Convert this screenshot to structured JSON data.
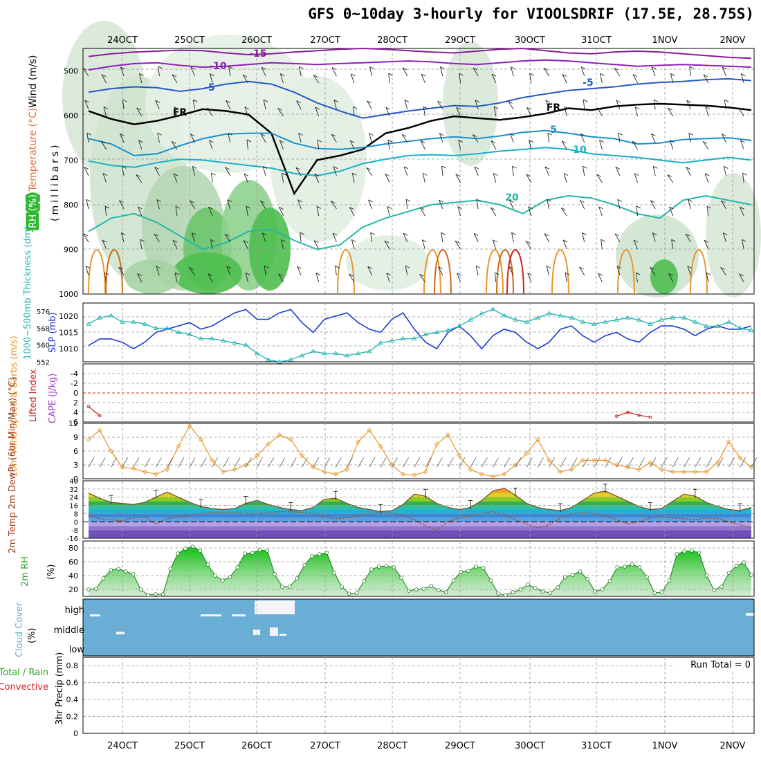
{
  "title": "GFS 0~10day 3-hourly for VIOOLSDRIF (17.5E, 28.75S)",
  "date_ticks": [
    "24OCT",
    "25OCT",
    "26OCT",
    "27OCT",
    "28OCT",
    "29OCT",
    "30OCT",
    "31OCT",
    "1NOV",
    "2NOV"
  ],
  "colors": {
    "rh_fill": "#2eb82e",
    "cloud": "#6aaed6",
    "slp": "#1a3ccf",
    "thick": "#2ab4b4",
    "wind": "#e8962a",
    "li": "#d42020",
    "rh2m": "#22aa22"
  },
  "chart_data": [
    {
      "type": "heatmap",
      "name": "upper-air",
      "ylabel_parts": [
        "RH (%)",
        "Temperature (°C)",
        "Wind (m/s)"
      ],
      "ylabel_unit": "(millibars)",
      "yticks": [
        "500",
        "600",
        "700",
        "800",
        "900",
        "1000"
      ],
      "ylim": [
        1000,
        450
      ],
      "isotherms": [
        {
          "label": "-15",
          "values": [
            468,
            462,
            458,
            456,
            454,
            455,
            460,
            464,
            462,
            458,
            455,
            452,
            450,
            452,
            455,
            458,
            460,
            456,
            452,
            450,
            455,
            460,
            462,
            458,
            456,
            458,
            462,
            466,
            470,
            472
          ]
        },
        {
          "label": "-10",
          "values": [
            498,
            490,
            484,
            482,
            488,
            492,
            490,
            486,
            482,
            484,
            486,
            484,
            482,
            480,
            478,
            480,
            484,
            486,
            482,
            478,
            476,
            478,
            482,
            486,
            490,
            488,
            486,
            488,
            490,
            492
          ]
        },
        {
          "label": "-5",
          "values": [
            548,
            540,
            536,
            538,
            546,
            540,
            530,
            524,
            530,
            548,
            572,
            590,
            606,
            598,
            590,
            584,
            578,
            580,
            572,
            560,
            552,
            544,
            540,
            536,
            530,
            526,
            524,
            520,
            518,
            522
          ]
        },
        {
          "label": "FR",
          "values": [
            590,
            608,
            620,
            612,
            600,
            586,
            590,
            598,
            640,
            775,
            700,
            690,
            676,
            640,
            628,
            612,
            602,
            606,
            610,
            604,
            596,
            584,
            588,
            580,
            576,
            574,
            576,
            578,
            582,
            588
          ]
        },
        {
          "label": "5",
          "values": [
            652,
            664,
            690,
            686,
            668,
            652,
            642,
            640,
            640,
            662,
            674,
            676,
            672,
            664,
            658,
            652,
            648,
            652,
            646,
            638,
            634,
            640,
            648,
            652,
            664,
            662,
            654,
            652,
            650,
            656
          ]
        },
        {
          "label": "10",
          "values": [
            702,
            712,
            716,
            706,
            698,
            700,
            706,
            712,
            718,
            730,
            735,
            725,
            708,
            698,
            690,
            688,
            690,
            686,
            680,
            676,
            672,
            676,
            686,
            690,
            694,
            700,
            706,
            700,
            694,
            700
          ]
        },
        {
          "label": "20",
          "values": [
            860,
            830,
            820,
            840,
            870,
            900,
            885,
            860,
            855,
            880,
            900,
            890,
            850,
            830,
            815,
            800,
            795,
            790,
            800,
            820,
            790,
            780,
            785,
            800,
            820,
            830,
            790,
            780,
            790,
            800
          ]
        }
      ]
    },
    {
      "type": "line",
      "name": "slp-thickness",
      "ylabel_left": "1000~500mb Thickness (dm)",
      "ylabel_right": "SLP (mb)",
      "left_ticks": [
        "576",
        "568",
        "560",
        "552"
      ],
      "right_ticks": [
        "1020",
        "1015",
        "1010"
      ],
      "series": [
        {
          "name": "SLP (mb)",
          "values": [
            1011,
            1013,
            1013,
            1012,
            1010,
            1012,
            1015,
            1016,
            1017,
            1018,
            1016,
            1017,
            1019,
            1021,
            1022,
            1019,
            1019,
            1021,
            1022,
            1018,
            1015,
            1019,
            1020,
            1021,
            1018,
            1016,
            1015,
            1019,
            1021,
            1016,
            1012,
            1010,
            1015,
            1017,
            1014,
            1010,
            1014,
            1016,
            1015,
            1012,
            1010,
            1012,
            1016,
            1017,
            1014,
            1012,
            1014,
            1015,
            1013,
            1012,
            1015,
            1017,
            1017,
            1016,
            1014,
            1016,
            1017,
            1016,
            1016,
            1017
          ]
        },
        {
          "name": "Thickness (dm)",
          "values": [
            570,
            573,
            574,
            571,
            571,
            570,
            568,
            568,
            566,
            565,
            563,
            563,
            562,
            561,
            560,
            556,
            553,
            552,
            553,
            555,
            557,
            556,
            556,
            555,
            556,
            557,
            561,
            562,
            563,
            563,
            565,
            566,
            567,
            569,
            572,
            575,
            577,
            574,
            572,
            571,
            573,
            575,
            574,
            573,
            571,
            570,
            571,
            572,
            573,
            572,
            570,
            572,
            573,
            573,
            571,
            569,
            569,
            571,
            568,
            567
          ]
        }
      ]
    },
    {
      "type": "line",
      "name": "lifted-index",
      "ylabel_left": "Lifted Index",
      "ylabel_right": "CAPE (J/kg)",
      "yticks": [
        "-4",
        "-2",
        "0",
        "2",
        "4",
        "6"
      ],
      "series": [
        {
          "name": "Lifted Index",
          "values": [
            2.8,
            4.7,
            null,
            null,
            null,
            null,
            null,
            null,
            null,
            null,
            null,
            null,
            null,
            null,
            null,
            null,
            null,
            null,
            null,
            null,
            null,
            null,
            null,
            null,
            null,
            null,
            null,
            null,
            null,
            null,
            null,
            null,
            null,
            null,
            null,
            null,
            null,
            null,
            null,
            null,
            null,
            null,
            null,
            null,
            null,
            null,
            null,
            null,
            null,
            null,
            null,
            null,
            null,
            null,
            null,
            null,
            null,
            null,
            null,
            null
          ]
        },
        {
          "name": "Lifted Index 2",
          "values": [
            null,
            null,
            null,
            null,
            null,
            null,
            null,
            null,
            null,
            null,
            null,
            null,
            null,
            null,
            null,
            null,
            null,
            null,
            null,
            null,
            null,
            null,
            null,
            null,
            null,
            null,
            null,
            null,
            null,
            null,
            null,
            null,
            null,
            null,
            null,
            null,
            null,
            null,
            null,
            null,
            null,
            null,
            null,
            null,
            null,
            null,
            null,
            4.8,
            4.0,
            4.6,
            5.0,
            null,
            null,
            null,
            null,
            null,
            null,
            null,
            null,
            null
          ]
        }
      ]
    },
    {
      "type": "line",
      "name": "10m-wind",
      "ylabel": "10m Wind Speed & Barbs (m/s)",
      "yticks": [
        "0",
        "3",
        "6",
        "9",
        "12"
      ],
      "series": [
        {
          "name": "10m Wind Speed",
          "values": [
            8.5,
            10.5,
            6,
            2.5,
            2.2,
            1.5,
            1,
            2,
            7,
            11.5,
            8.5,
            4,
            1.5,
            2,
            3,
            5,
            7.5,
            9.5,
            8.5,
            5,
            2.5,
            1.5,
            1,
            2,
            8,
            10.5,
            7,
            3,
            1,
            0.8,
            1.5,
            7.5,
            9.5,
            5,
            2,
            1,
            0.5,
            1,
            3,
            5.5,
            8.5,
            4,
            1.5,
            2,
            4,
            4,
            4,
            3,
            2.5,
            2,
            3.5,
            2,
            1.5,
            1.5,
            1.5,
            1.5,
            3.5,
            8,
            4.5,
            2.5
          ]
        }
      ]
    },
    {
      "type": "area",
      "name": "2m-temp",
      "ylabel": "2m Temp 2m DewPt (6hr Min/Max) (°C)",
      "yticks": [
        "-16",
        "-8",
        "0",
        "8",
        "16",
        "24",
        "32",
        "40"
      ],
      "series": [
        {
          "name": "2m Temp",
          "values": [
            28,
            23,
            19,
            18,
            17,
            19,
            24,
            29,
            24,
            19,
            15,
            13,
            12,
            13,
            18,
            21,
            17,
            14,
            12,
            11,
            14,
            22,
            23,
            18,
            14,
            12,
            10,
            11,
            17,
            27,
            25,
            18,
            14,
            12,
            14,
            21,
            30,
            33,
            26,
            18,
            14,
            12,
            11,
            14,
            21,
            28,
            30,
            25,
            20,
            15,
            12,
            13,
            20,
            27,
            25,
            19,
            15,
            12,
            11,
            14
          ]
        },
        {
          "name": "2m DewPt",
          "values": [
            6,
            3,
            2,
            1,
            4,
            5,
            -2,
            3,
            5,
            6,
            8,
            9,
            9,
            9,
            8,
            8,
            9,
            10,
            10,
            9,
            8,
            5,
            3,
            4,
            6,
            8,
            9,
            8,
            6,
            2,
            -4,
            -8,
            0,
            4,
            6,
            8,
            10,
            7,
            2,
            -2,
            -6,
            -3,
            4,
            8,
            9,
            8,
            6,
            2,
            -2,
            0,
            4,
            5,
            4,
            3,
            2,
            4,
            3,
            0,
            -3,
            -6
          ]
        }
      ]
    },
    {
      "type": "area",
      "name": "2m-rh",
      "ylabel": "2m RH (%)",
      "yticks": [
        "20",
        "40",
        "60",
        "80"
      ],
      "series": [
        {
          "name": "2m RH",
          "values": [
            20,
            21,
            36,
            48,
            50,
            46,
            42,
            20,
            12,
            13,
            13,
            50,
            72,
            79,
            82,
            76,
            56,
            40,
            33,
            38,
            52,
            72,
            73,
            77,
            76,
            42,
            24,
            24,
            36,
            55,
            68,
            71,
            73,
            44,
            24,
            14,
            15,
            32,
            49,
            53,
            54,
            52,
            37,
            18,
            20,
            21,
            25,
            19,
            16,
            33,
            45,
            47,
            53,
            51,
            33,
            14,
            12,
            16,
            20,
            27,
            22,
            17,
            15,
            23,
            38,
            41,
            46,
            35,
            17,
            20,
            32,
            52,
            53,
            56,
            52,
            38,
            15,
            16,
            33,
            71,
            75,
            76,
            73,
            40,
            19,
            24,
            44,
            54,
            59,
            41
          ]
        }
      ]
    },
    {
      "type": "heatmap",
      "name": "cloud-cover",
      "ylabel": "Cloud Cover (%)",
      "levels": [
        "high",
        "middle",
        "low"
      ]
    },
    {
      "type": "bar",
      "name": "precip",
      "ylabel_parts": [
        "Total / Rain",
        "Convective",
        "3hr Precip (mm)"
      ],
      "yticks": [
        "0",
        "0.2",
        "0.4",
        "0.6",
        "0.8"
      ],
      "run_total": "Run Total = 0",
      "values": []
    }
  ]
}
